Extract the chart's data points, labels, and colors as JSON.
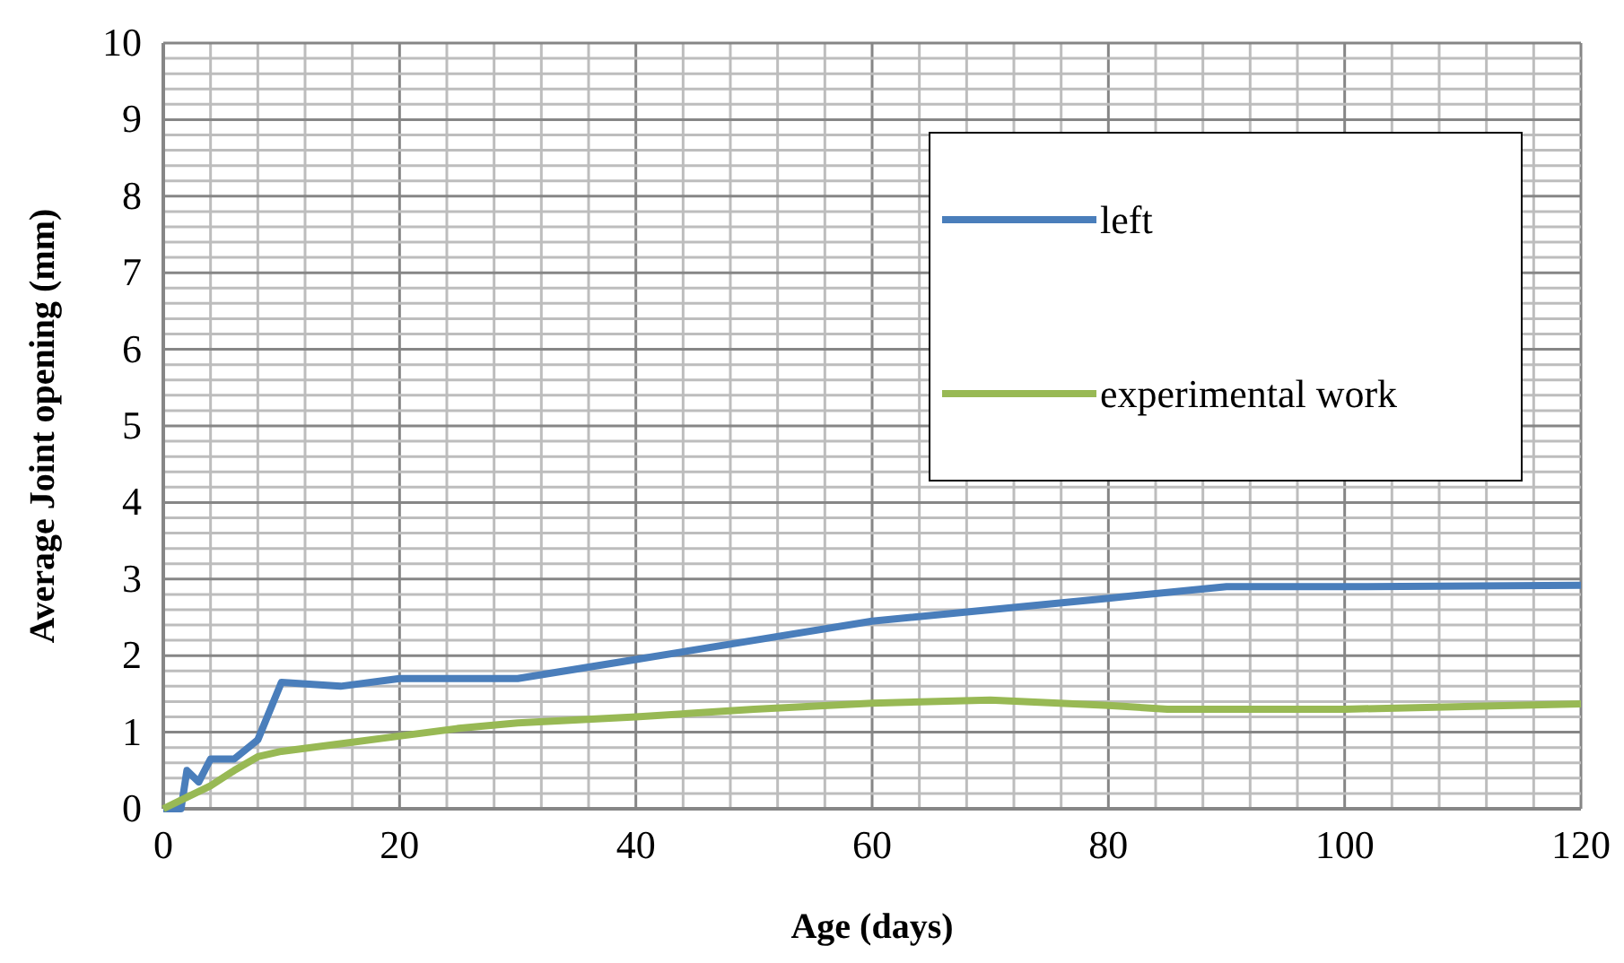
{
  "chart_data": {
    "type": "line",
    "xlabel": "Age (days)",
    "ylabel": "Average Joint opening (mm)",
    "xlim": [
      0,
      120
    ],
    "xticks": [
      0,
      20,
      40,
      60,
      80,
      100,
      120
    ],
    "ylim": [
      0,
      10
    ],
    "yticks": [
      0,
      1,
      2,
      3,
      4,
      5,
      6,
      7,
      8,
      9,
      10
    ],
    "grid": true,
    "legend": "top right",
    "marker": "none",
    "line_style": "solid",
    "series": [
      {
        "name": "left",
        "color": "#4a7ebb",
        "x": [
          0,
          1.5,
          2,
          3,
          4,
          6,
          8,
          10,
          15,
          20,
          30,
          40,
          50,
          60,
          70,
          80,
          90,
          100,
          120
        ],
        "values": [
          0,
          0,
          0.5,
          0.35,
          0.65,
          0.65,
          0.9,
          1.65,
          1.6,
          1.7,
          1.7,
          1.95,
          2.2,
          2.45,
          2.6,
          2.75,
          2.9,
          2.9,
          2.92
        ]
      },
      {
        "name": "experimental work",
        "color": "#98b954",
        "x": [
          0,
          2,
          4,
          6,
          8,
          10,
          15,
          20,
          25,
          30,
          40,
          50,
          60,
          70,
          80,
          85,
          100,
          120
        ],
        "values": [
          0,
          0.15,
          0.3,
          0.5,
          0.68,
          0.75,
          0.85,
          0.95,
          1.05,
          1.12,
          1.2,
          1.3,
          1.38,
          1.42,
          1.35,
          1.3,
          1.3,
          1.37
        ]
      }
    ]
  }
}
